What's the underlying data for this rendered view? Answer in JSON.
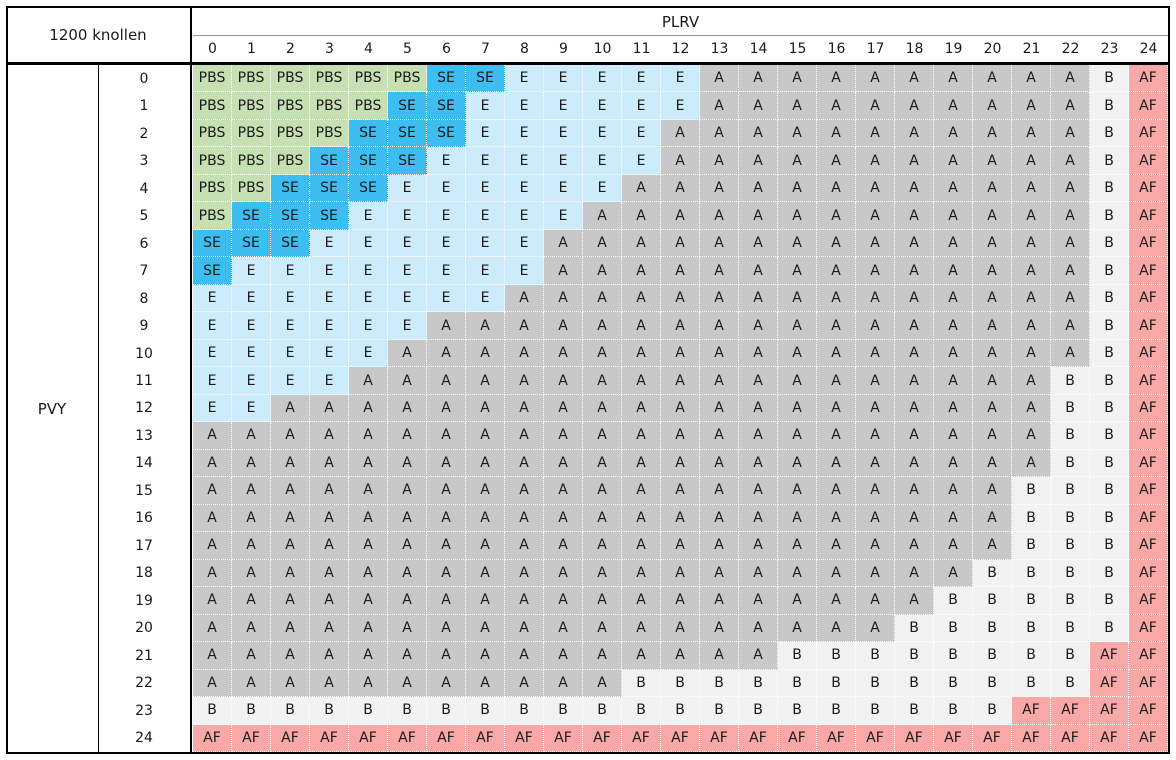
{
  "table": {
    "corner_label": "1200 knollen",
    "column_group_label": "PLRV",
    "row_group_label": "PVY",
    "columns": [
      "0",
      "1",
      "2",
      "3",
      "4",
      "5",
      "6",
      "7",
      "8",
      "9",
      "10",
      "11",
      "12",
      "13",
      "14",
      "15",
      "16",
      "17",
      "18",
      "19",
      "20",
      "21",
      "22",
      "23",
      "24"
    ],
    "row_labels": [
      "0",
      "1",
      "2",
      "3",
      "4",
      "5",
      "6",
      "7",
      "8",
      "9",
      "10",
      "11",
      "12",
      "13",
      "14",
      "15",
      "16",
      "17",
      "18",
      "19",
      "20",
      "21",
      "22",
      "23",
      "24"
    ],
    "class_colors": {
      "PBS": "#c6e0b4",
      "SE": "#3ebdf0",
      "E": "#ccecfb",
      "A": "#c8c8c8",
      "B": "#f2f2f2",
      "AF": "#f9a8a8"
    },
    "rows": [
      [
        "PBS",
        "PBS",
        "PBS",
        "PBS",
        "PBS",
        "PBS",
        "SE",
        "SE",
        "E",
        "E",
        "E",
        "E",
        "E",
        "A",
        "A",
        "A",
        "A",
        "A",
        "A",
        "A",
        "A",
        "A",
        "A",
        "B",
        "AF"
      ],
      [
        "PBS",
        "PBS",
        "PBS",
        "PBS",
        "PBS",
        "SE",
        "SE",
        "E",
        "E",
        "E",
        "E",
        "E",
        "E",
        "A",
        "A",
        "A",
        "A",
        "A",
        "A",
        "A",
        "A",
        "A",
        "A",
        "B",
        "AF"
      ],
      [
        "PBS",
        "PBS",
        "PBS",
        "PBS",
        "SE",
        "SE",
        "SE",
        "E",
        "E",
        "E",
        "E",
        "E",
        "A",
        "A",
        "A",
        "A",
        "A",
        "A",
        "A",
        "A",
        "A",
        "A",
        "A",
        "B",
        "AF"
      ],
      [
        "PBS",
        "PBS",
        "PBS",
        "SE",
        "SE",
        "SE",
        "E",
        "E",
        "E",
        "E",
        "E",
        "E",
        "A",
        "A",
        "A",
        "A",
        "A",
        "A",
        "A",
        "A",
        "A",
        "A",
        "A",
        "B",
        "AF"
      ],
      [
        "PBS",
        "PBS",
        "SE",
        "SE",
        "SE",
        "E",
        "E",
        "E",
        "E",
        "E",
        "E",
        "A",
        "A",
        "A",
        "A",
        "A",
        "A",
        "A",
        "A",
        "A",
        "A",
        "A",
        "A",
        "B",
        "AF"
      ],
      [
        "PBS",
        "SE",
        "SE",
        "SE",
        "E",
        "E",
        "E",
        "E",
        "E",
        "E",
        "A",
        "A",
        "A",
        "A",
        "A",
        "A",
        "A",
        "A",
        "A",
        "A",
        "A",
        "A",
        "A",
        "B",
        "AF"
      ],
      [
        "SE",
        "SE",
        "SE",
        "E",
        "E",
        "E",
        "E",
        "E",
        "E",
        "A",
        "A",
        "A",
        "A",
        "A",
        "A",
        "A",
        "A",
        "A",
        "A",
        "A",
        "A",
        "A",
        "A",
        "B",
        "AF"
      ],
      [
        "SE",
        "E",
        "E",
        "E",
        "E",
        "E",
        "E",
        "E",
        "E",
        "A",
        "A",
        "A",
        "A",
        "A",
        "A",
        "A",
        "A",
        "A",
        "A",
        "A",
        "A",
        "A",
        "A",
        "B",
        "AF"
      ],
      [
        "E",
        "E",
        "E",
        "E",
        "E",
        "E",
        "E",
        "E",
        "A",
        "A",
        "A",
        "A",
        "A",
        "A",
        "A",
        "A",
        "A",
        "A",
        "A",
        "A",
        "A",
        "A",
        "A",
        "B",
        "AF"
      ],
      [
        "E",
        "E",
        "E",
        "E",
        "E",
        "E",
        "A",
        "A",
        "A",
        "A",
        "A",
        "A",
        "A",
        "A",
        "A",
        "A",
        "A",
        "A",
        "A",
        "A",
        "A",
        "A",
        "A",
        "B",
        "AF"
      ],
      [
        "E",
        "E",
        "E",
        "E",
        "E",
        "A",
        "A",
        "A",
        "A",
        "A",
        "A",
        "A",
        "A",
        "A",
        "A",
        "A",
        "A",
        "A",
        "A",
        "A",
        "A",
        "A",
        "A",
        "B",
        "AF"
      ],
      [
        "E",
        "E",
        "E",
        "E",
        "A",
        "A",
        "A",
        "A",
        "A",
        "A",
        "A",
        "A",
        "A",
        "A",
        "A",
        "A",
        "A",
        "A",
        "A",
        "A",
        "A",
        "A",
        "B",
        "B",
        "AF"
      ],
      [
        "E",
        "E",
        "A",
        "A",
        "A",
        "A",
        "A",
        "A",
        "A",
        "A",
        "A",
        "A",
        "A",
        "A",
        "A",
        "A",
        "A",
        "A",
        "A",
        "A",
        "A",
        "A",
        "B",
        "B",
        "AF"
      ],
      [
        "A",
        "A",
        "A",
        "A",
        "A",
        "A",
        "A",
        "A",
        "A",
        "A",
        "A",
        "A",
        "A",
        "A",
        "A",
        "A",
        "A",
        "A",
        "A",
        "A",
        "A",
        "A",
        "B",
        "B",
        "AF"
      ],
      [
        "A",
        "A",
        "A",
        "A",
        "A",
        "A",
        "A",
        "A",
        "A",
        "A",
        "A",
        "A",
        "A",
        "A",
        "A",
        "A",
        "A",
        "A",
        "A",
        "A",
        "A",
        "A",
        "B",
        "B",
        "AF"
      ],
      [
        "A",
        "A",
        "A",
        "A",
        "A",
        "A",
        "A",
        "A",
        "A",
        "A",
        "A",
        "A",
        "A",
        "A",
        "A",
        "A",
        "A",
        "A",
        "A",
        "A",
        "A",
        "B",
        "B",
        "B",
        "AF"
      ],
      [
        "A",
        "A",
        "A",
        "A",
        "A",
        "A",
        "A",
        "A",
        "A",
        "A",
        "A",
        "A",
        "A",
        "A",
        "A",
        "A",
        "A",
        "A",
        "A",
        "A",
        "A",
        "B",
        "B",
        "B",
        "AF"
      ],
      [
        "A",
        "A",
        "A",
        "A",
        "A",
        "A",
        "A",
        "A",
        "A",
        "A",
        "A",
        "A",
        "A",
        "A",
        "A",
        "A",
        "A",
        "A",
        "A",
        "A",
        "A",
        "B",
        "B",
        "B",
        "AF"
      ],
      [
        "A",
        "A",
        "A",
        "A",
        "A",
        "A",
        "A",
        "A",
        "A",
        "A",
        "A",
        "A",
        "A",
        "A",
        "A",
        "A",
        "A",
        "A",
        "A",
        "A",
        "B",
        "B",
        "B",
        "B",
        "AF"
      ],
      [
        "A",
        "A",
        "A",
        "A",
        "A",
        "A",
        "A",
        "A",
        "A",
        "A",
        "A",
        "A",
        "A",
        "A",
        "A",
        "A",
        "A",
        "A",
        "A",
        "B",
        "B",
        "B",
        "B",
        "B",
        "AF"
      ],
      [
        "A",
        "A",
        "A",
        "A",
        "A",
        "A",
        "A",
        "A",
        "A",
        "A",
        "A",
        "A",
        "A",
        "A",
        "A",
        "A",
        "A",
        "A",
        "B",
        "B",
        "B",
        "B",
        "B",
        "B",
        "AF"
      ],
      [
        "A",
        "A",
        "A",
        "A",
        "A",
        "A",
        "A",
        "A",
        "A",
        "A",
        "A",
        "A",
        "A",
        "A",
        "A",
        "B",
        "B",
        "B",
        "B",
        "B",
        "B",
        "B",
        "B",
        "AF",
        "AF"
      ],
      [
        "A",
        "A",
        "A",
        "A",
        "A",
        "A",
        "A",
        "A",
        "A",
        "A",
        "A",
        "B",
        "B",
        "B",
        "B",
        "B",
        "B",
        "B",
        "B",
        "B",
        "B",
        "B",
        "B",
        "AF",
        "AF"
      ],
      [
        "B",
        "B",
        "B",
        "B",
        "B",
        "B",
        "B",
        "B",
        "B",
        "B",
        "B",
        "B",
        "B",
        "B",
        "B",
        "B",
        "B",
        "B",
        "B",
        "B",
        "B",
        "AF",
        "AF",
        "AF",
        "AF"
      ],
      [
        "AF",
        "AF",
        "AF",
        "AF",
        "AF",
        "AF",
        "AF",
        "AF",
        "AF",
        "AF",
        "AF",
        "AF",
        "AF",
        "AF",
        "AF",
        "AF",
        "AF",
        "AF",
        "AF",
        "AF",
        "AF",
        "AF",
        "AF",
        "AF",
        "AF"
      ]
    ]
  }
}
